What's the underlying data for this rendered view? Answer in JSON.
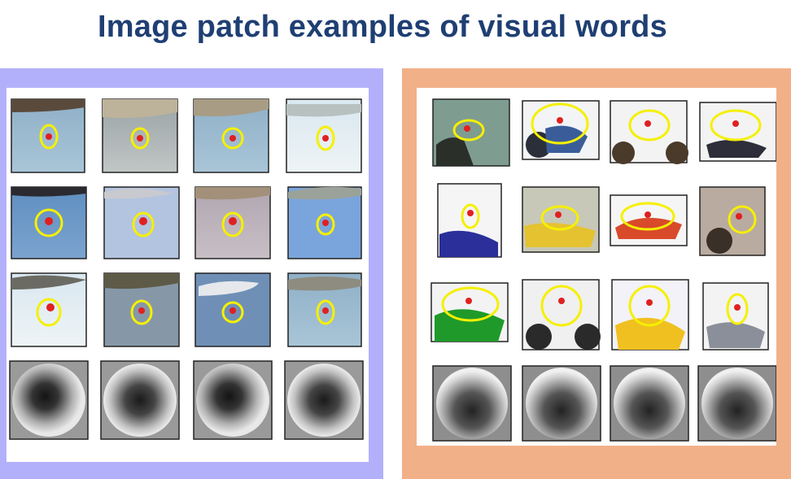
{
  "title": "Image patch examples of  visual words",
  "panels": {
    "left": {
      "subject": "airplane",
      "grid_rows": 4,
      "grid_cols": 4,
      "background_color": "#b3b0fb"
    },
    "right": {
      "subject": "motorbike",
      "grid_rows": 4,
      "grid_cols": 4,
      "background_color": "#f2b088"
    }
  },
  "colors": {
    "title": "#1f3f73",
    "ellipse": "#f5f000",
    "keypoint": "#e02020"
  }
}
